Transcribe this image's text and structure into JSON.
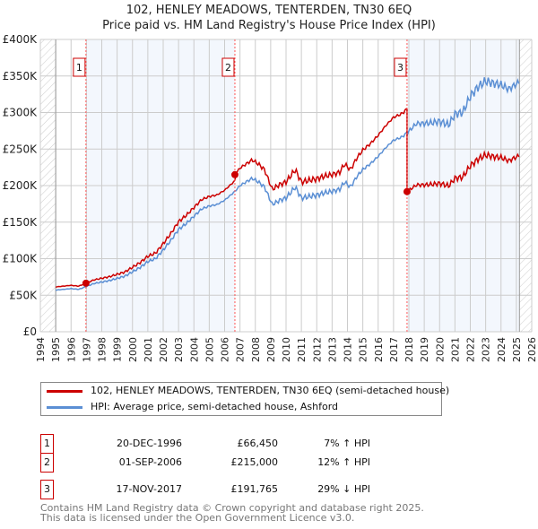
{
  "chart_data": {
    "type": "line",
    "title": "102, HENLEY MEADOWS, TENTERDEN, TN30 6EQ",
    "subtitle": "Price paid vs. HM Land Registry's House Price Index (HPI)",
    "xlim": [
      1994,
      2026
    ],
    "ylim": [
      0,
      400000
    ],
    "x_ticks": [
      "1994",
      "1995",
      "1996",
      "1997",
      "1998",
      "1999",
      "2000",
      "2001",
      "2002",
      "2003",
      "2004",
      "2005",
      "2006",
      "2007",
      "2008",
      "2009",
      "2010",
      "2011",
      "2012",
      "2013",
      "2014",
      "2015",
      "2016",
      "2017",
      "2018",
      "2019",
      "2020",
      "2021",
      "2022",
      "2023",
      "2024",
      "2025",
      "2026"
    ],
    "y_ticks": [
      {
        "v": 0,
        "label": "£0"
      },
      {
        "v": 50000,
        "label": "£50K"
      },
      {
        "v": 100000,
        "label": "£100K"
      },
      {
        "v": 150000,
        "label": "£150K"
      },
      {
        "v": 200000,
        "label": "£200K"
      },
      {
        "v": 250000,
        "label": "£250K"
      },
      {
        "v": 300000,
        "label": "£300K"
      },
      {
        "v": 350000,
        "label": "£350K"
      },
      {
        "v": 400000,
        "label": "£400K"
      }
    ],
    "grid": true,
    "data_range": [
      1995,
      2025.2
    ],
    "hpi_series": {
      "name": "HPI: Average price, semi-detached house, Ashford",
      "color": "#5b8fd4",
      "x": [
        1995,
        1995.5,
        1996,
        1996.5,
        1997,
        1997.5,
        1998,
        1998.5,
        1999,
        1999.5,
        2000,
        2000.5,
        2001,
        2001.5,
        2002,
        2002.5,
        2003,
        2003.5,
        2004,
        2004.5,
        2005,
        2005.5,
        2006,
        2006.67,
        2007,
        2007.8,
        2008.2,
        2008.6,
        2009.1,
        2009.6,
        2010,
        2010.6,
        2011,
        2011.5,
        2012,
        2012.5,
        2013,
        2013.5,
        2013.8,
        2014.2,
        2014.6,
        2015,
        2015.5,
        2016,
        2016.5,
        2017,
        2017.5,
        2017.88,
        2018.5,
        2019,
        2019.5,
        2020,
        2020.6,
        2021,
        2021.5,
        2022,
        2022.5,
        2023,
        2023.5,
        2024,
        2024.5,
        2025.2
      ],
      "y": [
        57000,
        58000,
        59000,
        58000,
        62000,
        66000,
        68000,
        70000,
        73000,
        76000,
        82000,
        88000,
        96000,
        100000,
        112000,
        125000,
        140000,
        148000,
        158000,
        168000,
        172000,
        174000,
        180000,
        192000,
        200000,
        210000,
        205000,
        198000,
        174000,
        180000,
        183000,
        198000,
        183000,
        185000,
        187000,
        190000,
        192000,
        195000,
        205000,
        198000,
        212000,
        222000,
        230000,
        240000,
        252000,
        262000,
        266000,
        272000,
        285000,
        285000,
        286000,
        288000,
        283000,
        298000,
        300000,
        322000,
        335000,
        343000,
        340000,
        338000,
        332000,
        342000
      ]
    },
    "price_series": {
      "name": "102, HENLEY MEADOWS, TENTERDEN, TN30 6EQ (semi-detached house)",
      "color": "#cc0000"
    },
    "sales": [
      {
        "n": "1",
        "x": 1996.97,
        "date": "20-DEC-1996",
        "price": 66450,
        "price_label": "£66,450",
        "hpi": "7% ↑ HPI"
      },
      {
        "n": "2",
        "x": 2006.67,
        "date": "01-SEP-2006",
        "price": 215000,
        "price_label": "£215,000",
        "hpi": "12% ↑ HPI"
      },
      {
        "n": "3",
        "x": 2017.88,
        "date": "17-NOV-2017",
        "price": 191765,
        "price_label": "£191,765",
        "hpi": "29% ↓ HPI"
      }
    ],
    "legend_position": "below"
  },
  "footer": {
    "line1": "Contains HM Land Registry data © Crown copyright and database right 2025.",
    "line2": "This data is licensed under the Open Government Licence v3.0."
  }
}
